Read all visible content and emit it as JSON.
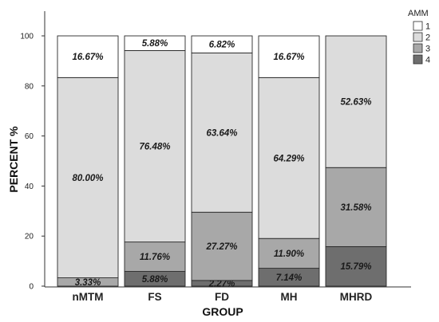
{
  "chart_data": {
    "type": "bar",
    "stacked": true,
    "categories": [
      "nMTM",
      "FS",
      "FD",
      "MH",
      "MHRD"
    ],
    "series": [
      {
        "name": "4",
        "color": "#6e6e6e",
        "values": [
          0,
          5.88,
          2.27,
          7.14,
          15.79
        ],
        "labels": [
          "",
          "5.88%",
          "2.27%",
          "7.14%",
          "15.79%"
        ]
      },
      {
        "name": "3",
        "color": "#a8a8a8",
        "values": [
          3.33,
          11.76,
          27.27,
          11.9,
          31.58
        ],
        "labels": [
          "3.33%",
          "11.76%",
          "27.27%",
          "11.90%",
          "31.58%"
        ]
      },
      {
        "name": "2",
        "color": "#dcdcdc",
        "values": [
          80.0,
          76.48,
          63.64,
          64.29,
          52.63
        ],
        "labels": [
          "80.00%",
          "76.48%",
          "63.64%",
          "64.29%",
          "52.63%"
        ]
      },
      {
        "name": "1",
        "color": "#ffffff",
        "values": [
          16.67,
          5.88,
          6.82,
          16.67,
          0
        ],
        "labels": [
          "16.67%",
          "5.88%",
          "6.82%",
          "16.67%",
          ""
        ]
      }
    ],
    "legend_order": [
      "1",
      "2",
      "3",
      "4"
    ],
    "legend_title": "AMM",
    "xlabel": "GROUP",
    "ylabel": "PERCENT %",
    "ylim": [
      0,
      100
    ],
    "yticks": [
      0,
      20,
      40,
      60,
      80,
      100
    ],
    "grid": false,
    "legend_position": "top-right"
  }
}
